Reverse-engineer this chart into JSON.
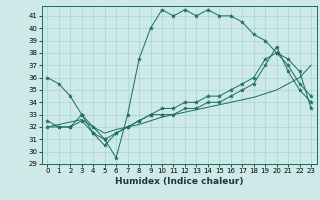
{
  "title": "",
  "xlabel": "Humidex (Indice chaleur)",
  "bg_color": "#ceeae8",
  "grid_color": "#a8d4d0",
  "line_color": "#1a6b60",
  "xlim": [
    -0.5,
    23.5
  ],
  "ylim": [
    29,
    41.8
  ],
  "yticks": [
    29,
    30,
    31,
    32,
    33,
    34,
    35,
    36,
    37,
    38,
    39,
    40,
    41
  ],
  "xticks": [
    0,
    1,
    2,
    3,
    4,
    5,
    6,
    7,
    8,
    9,
    10,
    11,
    12,
    13,
    14,
    15,
    16,
    17,
    18,
    19,
    20,
    21,
    22,
    23
  ],
  "series1_marker": {
    "x": [
      0,
      1,
      2,
      3,
      4,
      5,
      6,
      7,
      8,
      9,
      10,
      11,
      12,
      13,
      14,
      15,
      16,
      17,
      18,
      19,
      20,
      21,
      22,
      23
    ],
    "y": [
      36.0,
      35.5,
      34.5,
      33.0,
      32.0,
      31.0,
      29.5,
      33.0,
      37.5,
      40.0,
      41.5,
      41.0,
      41.5,
      41.0,
      41.5,
      41.0,
      41.0,
      40.5,
      39.5,
      39.0,
      38.0,
      37.0,
      35.5,
      34.5
    ]
  },
  "series2_plain": {
    "x": [
      0,
      1,
      2,
      3,
      4,
      5,
      6,
      7,
      8,
      9,
      10,
      11,
      12,
      13,
      14,
      15,
      16,
      17,
      18,
      19,
      20,
      21,
      22,
      23
    ],
    "y": [
      32.0,
      32.2,
      32.4,
      32.6,
      32.0,
      31.5,
      31.8,
      32.0,
      32.2,
      32.5,
      32.8,
      33.0,
      33.2,
      33.4,
      33.6,
      33.8,
      34.0,
      34.2,
      34.4,
      34.7,
      35.0,
      35.5,
      36.0,
      37.0
    ]
  },
  "series3_marker": {
    "x": [
      0,
      1,
      2,
      3,
      4,
      5,
      6,
      7,
      8,
      9,
      10,
      11,
      12,
      13,
      14,
      15,
      16,
      17,
      18,
      19,
      20,
      21,
      22,
      23
    ],
    "y": [
      32.5,
      32.0,
      32.0,
      33.0,
      31.5,
      31.0,
      31.5,
      32.0,
      32.5,
      33.0,
      33.5,
      33.5,
      34.0,
      34.0,
      34.5,
      34.5,
      35.0,
      35.5,
      36.0,
      37.5,
      38.0,
      37.5,
      36.5,
      33.5
    ]
  },
  "series4_marker": {
    "x": [
      0,
      1,
      2,
      3,
      4,
      5,
      6,
      7,
      8,
      9,
      10,
      11,
      12,
      13,
      14,
      15,
      16,
      17,
      18,
      19,
      20,
      21,
      22,
      23
    ],
    "y": [
      32.0,
      32.0,
      32.0,
      32.5,
      31.5,
      30.5,
      31.5,
      32.0,
      32.5,
      33.0,
      33.0,
      33.0,
      33.5,
      33.5,
      34.0,
      34.0,
      34.5,
      35.0,
      35.5,
      37.0,
      38.5,
      36.5,
      35.0,
      34.0
    ]
  },
  "xlabel_fontsize": 6.5,
  "tick_fontsize": 5.0,
  "figsize": [
    3.2,
    2.0
  ],
  "dpi": 100
}
